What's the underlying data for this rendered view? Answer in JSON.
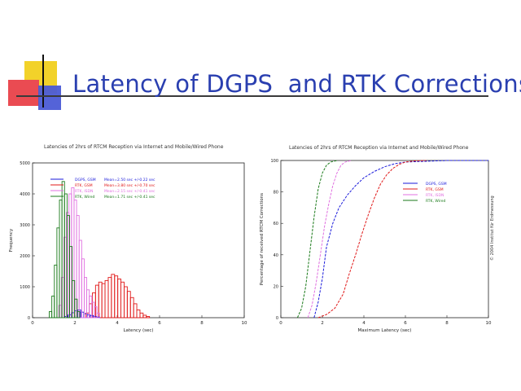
{
  "slide": {
    "title_left": "Latency of DGPS",
    "title_right": "and RTK Corrections"
  },
  "charts_meta": {
    "left_title": "Latencies of 2hrs of RTCM Reception via Internet and Mobile/Wired Phone",
    "right_title": "Latencies of 2hrs of RTCM Reception via Internet and Mobile/Wired Phone",
    "credit": "© 2004 Institut für Erdmessung"
  },
  "colors": {
    "dgps_gsm": "#1a1adb",
    "rtk_gsm": "#e01818",
    "rtk_isdn": "#e070e0",
    "rtk_wired": "#1a7a1a",
    "title_blue": "#2a3fb0"
  },
  "chart_data": [
    {
      "type": "bar",
      "title": "Latencies of 2hrs of RTCM Reception via Internet and Mobile/Wired Phone",
      "xlabel": "Latency (sec)",
      "ylabel": "Frequency",
      "xlim": [
        0,
        10
      ],
      "ylim": [
        0,
        5000
      ],
      "xticks": [
        "0",
        "2",
        "4",
        "6",
        "8",
        "10"
      ],
      "yticks": [
        "0",
        "1000",
        "2000",
        "3000",
        "4000",
        "5000"
      ],
      "legend_position": "top-left",
      "series": [
        {
          "name": "DGPS, GSM",
          "stat": "Mean=2.50 sec +/-0.22 sec",
          "color": "#1a1adb",
          "bin_width": 0.15,
          "x": [
            1.6,
            1.75,
            1.9,
            2.05,
            2.2,
            2.35,
            2.5,
            2.65,
            2.8,
            2.95,
            3.1
          ],
          "values": [
            40,
            90,
            160,
            220,
            250,
            180,
            130,
            90,
            70,
            40,
            20
          ]
        },
        {
          "name": "RTK, GSM",
          "stat": "Mean=3.80 sec +/-0.70 sec",
          "color": "#e01818",
          "bin_width": 0.15,
          "x": [
            2.6,
            2.75,
            2.9,
            3.05,
            3.2,
            3.35,
            3.5,
            3.65,
            3.8,
            3.95,
            4.1,
            4.25,
            4.4,
            4.55,
            4.7,
            4.85,
            5.0,
            5.15,
            5.3,
            5.45
          ],
          "values": [
            150,
            450,
            800,
            1050,
            1150,
            1100,
            1200,
            1300,
            1400,
            1350,
            1250,
            1150,
            1000,
            850,
            650,
            450,
            250,
            150,
            80,
            40
          ]
        },
        {
          "name": "RTK, ISDN",
          "stat": "Mean=2.15 sec +/-0.41 sec",
          "color": "#e070e0",
          "bin_width": 0.12,
          "x": [
            1.3,
            1.42,
            1.54,
            1.66,
            1.78,
            1.9,
            2.02,
            2.14,
            2.26,
            2.38,
            2.5,
            2.62,
            2.74,
            2.86,
            2.98,
            3.1
          ],
          "values": [
            400,
            1300,
            2600,
            3400,
            4000,
            4200,
            3800,
            3300,
            2500,
            1900,
            1300,
            900,
            700,
            500,
            350,
            150
          ]
        },
        {
          "name": "RTK, Wired",
          "stat": "Mean=1.71 sec +/-0.41 sec",
          "color": "#1a7a1a",
          "bin_width": 0.12,
          "x": [
            0.85,
            0.97,
            1.09,
            1.21,
            1.33,
            1.45,
            1.57,
            1.69,
            1.81,
            1.93,
            2.05,
            2.17
          ],
          "values": [
            200,
            700,
            1700,
            2900,
            3800,
            4400,
            4000,
            3300,
            2300,
            1200,
            600,
            200
          ]
        }
      ]
    },
    {
      "type": "line",
      "title": "Latencies of 2hrs of RTCM Reception via Internet and Mobile/Wired Phone",
      "xlabel": "Maximum Latency (sec)",
      "ylabel": "Percentage of received RTCM Corrections",
      "xlim": [
        0,
        10
      ],
      "ylim": [
        0,
        100
      ],
      "xticks": [
        "0",
        "2",
        "4",
        "6",
        "8",
        "10"
      ],
      "yticks": [
        "0",
        "20",
        "40",
        "60",
        "80",
        "100"
      ],
      "legend_position": "right",
      "series": [
        {
          "name": "DGPS, GSM",
          "color": "#1a1adb",
          "x": [
            1.6,
            1.8,
            2.0,
            2.2,
            2.5,
            2.8,
            3.2,
            3.6,
            4.0,
            4.5,
            5.0,
            5.5,
            6.0,
            7.0,
            8.0,
            10.0
          ],
          "values": [
            0,
            10,
            25,
            45,
            60,
            70,
            78,
            84,
            89,
            93,
            96,
            98,
            99,
            99.5,
            100,
            100
          ]
        },
        {
          "name": "RTK, GSM",
          "color": "#e01818",
          "x": [
            1.8,
            2.2,
            2.6,
            3.0,
            3.3,
            3.6,
            3.9,
            4.2,
            4.5,
            4.8,
            5.1,
            5.4,
            5.7,
            6.0,
            6.5,
            7.0
          ],
          "values": [
            0,
            2,
            6,
            15,
            28,
            40,
            53,
            65,
            76,
            85,
            91,
            95,
            97.5,
            99,
            99.8,
            100
          ]
        },
        {
          "name": "RTK, ISDN",
          "color": "#e070e0",
          "x": [
            1.3,
            1.5,
            1.7,
            1.9,
            2.1,
            2.3,
            2.5,
            2.7,
            2.9,
            3.1,
            3.4
          ],
          "values": [
            0,
            8,
            22,
            40,
            58,
            72,
            84,
            92,
            97,
            99,
            100
          ]
        },
        {
          "name": "RTK, Wired",
          "color": "#1a7a1a",
          "x": [
            0.8,
            1.0,
            1.2,
            1.4,
            1.6,
            1.8,
            2.0,
            2.2,
            2.4,
            2.7
          ],
          "values": [
            0,
            6,
            20,
            42,
            64,
            82,
            92,
            97,
            99,
            100
          ]
        }
      ]
    }
  ]
}
